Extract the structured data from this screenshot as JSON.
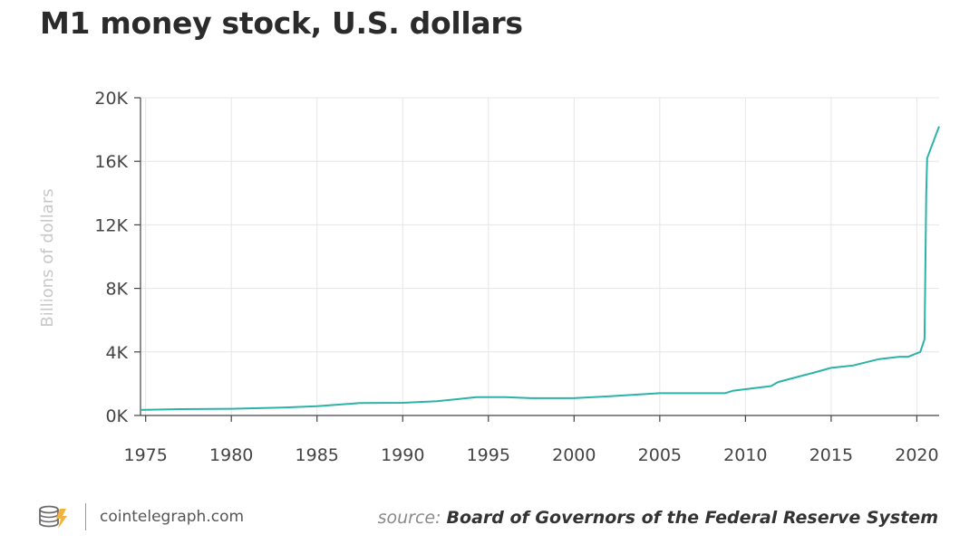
{
  "header": {
    "title": "M1 money stock, U.S. dollars"
  },
  "footer": {
    "site": "cointelegraph.com",
    "source_prefix": "source:",
    "source_name": "Board of Governors of the Federal Reserve System",
    "logo_icon": "cointelegraph-logo-icon"
  },
  "colors": {
    "line": "#2bb3a8",
    "grid": "#e6e6e6",
    "axis": "#444444",
    "tick_text": "#444444",
    "ylabel": "#c8c8c8"
  },
  "chart_data": {
    "type": "line",
    "title": "M1 money stock, U.S. dollars",
    "xlabel": "",
    "ylabel": "Billions of dollars",
    "xlim": [
      1974.7,
      2021.3
    ],
    "ylim": [
      0,
      20000
    ],
    "grid": true,
    "x_ticks": [
      1975,
      1980,
      1985,
      1990,
      1995,
      2000,
      2005,
      2010,
      2015,
      2020
    ],
    "x_tick_labels": [
      "1975",
      "1980",
      "1985",
      "1990",
      "1995",
      "2000",
      "2005",
      "2010",
      "2015",
      "2020"
    ],
    "y_ticks": [
      0,
      4000,
      8000,
      12000,
      16000,
      20000
    ],
    "y_tick_labels": [
      "0K",
      "4K",
      "8K",
      "12K",
      "16K",
      "20K"
    ],
    "series": [
      {
        "x": [
          1974.7,
          1977,
          1980,
          1983,
          1985,
          1987.5,
          1990,
          1992,
          1994.3,
          1996,
          1997.5,
          2000,
          2002,
          2005,
          2008.8,
          2009.3,
          2011.5,
          2011.9,
          2014,
          2015,
          2016.3,
          2017.8,
          2019,
          2019.5,
          2020.2,
          2020.45,
          2020.55,
          2020.6,
          2021.3
        ],
        "y": [
          350,
          400,
          420,
          500,
          580,
          780,
          800,
          900,
          1150,
          1150,
          1090,
          1090,
          1200,
          1400,
          1400,
          1560,
          1850,
          2100,
          2700,
          3000,
          3150,
          3550,
          3700,
          3700,
          4000,
          4800,
          14000,
          16200,
          18200
        ]
      }
    ]
  }
}
